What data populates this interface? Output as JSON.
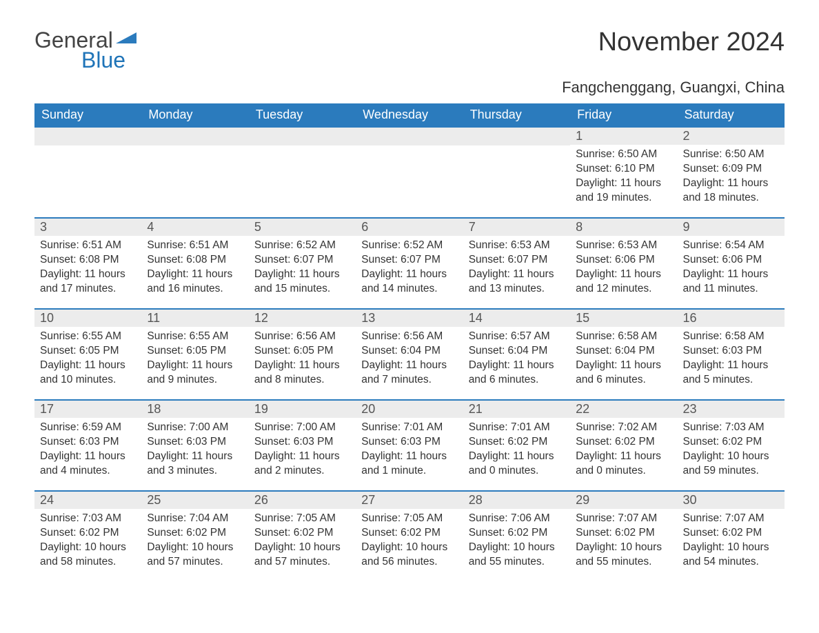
{
  "logo": {
    "general": "General",
    "blue": "Blue",
    "flag_color": "#2b7bbd"
  },
  "title": "November 2024",
  "location": "Fangchenggang, Guangxi, China",
  "colors": {
    "header_bg": "#2b7bbd",
    "header_text": "#ffffff",
    "daynum_bg": "#ececec",
    "text": "#333333",
    "row_border": "#2b7bbd"
  },
  "fonts": {
    "title_pt": 38,
    "location_pt": 22,
    "header_pt": 18,
    "daynum_pt": 18,
    "body_pt": 15.5
  },
  "day_labels": [
    "Sunday",
    "Monday",
    "Tuesday",
    "Wednesday",
    "Thursday",
    "Friday",
    "Saturday"
  ],
  "weeks": [
    [
      null,
      null,
      null,
      null,
      null,
      {
        "n": "1",
        "sunrise": "Sunrise: 6:50 AM",
        "sunset": "Sunset: 6:10 PM",
        "daylight": "Daylight: 11 hours and 19 minutes."
      },
      {
        "n": "2",
        "sunrise": "Sunrise: 6:50 AM",
        "sunset": "Sunset: 6:09 PM",
        "daylight": "Daylight: 11 hours and 18 minutes."
      }
    ],
    [
      {
        "n": "3",
        "sunrise": "Sunrise: 6:51 AM",
        "sunset": "Sunset: 6:08 PM",
        "daylight": "Daylight: 11 hours and 17 minutes."
      },
      {
        "n": "4",
        "sunrise": "Sunrise: 6:51 AM",
        "sunset": "Sunset: 6:08 PM",
        "daylight": "Daylight: 11 hours and 16 minutes."
      },
      {
        "n": "5",
        "sunrise": "Sunrise: 6:52 AM",
        "sunset": "Sunset: 6:07 PM",
        "daylight": "Daylight: 11 hours and 15 minutes."
      },
      {
        "n": "6",
        "sunrise": "Sunrise: 6:52 AM",
        "sunset": "Sunset: 6:07 PM",
        "daylight": "Daylight: 11 hours and 14 minutes."
      },
      {
        "n": "7",
        "sunrise": "Sunrise: 6:53 AM",
        "sunset": "Sunset: 6:07 PM",
        "daylight": "Daylight: 11 hours and 13 minutes."
      },
      {
        "n": "8",
        "sunrise": "Sunrise: 6:53 AM",
        "sunset": "Sunset: 6:06 PM",
        "daylight": "Daylight: 11 hours and 12 minutes."
      },
      {
        "n": "9",
        "sunrise": "Sunrise: 6:54 AM",
        "sunset": "Sunset: 6:06 PM",
        "daylight": "Daylight: 11 hours and 11 minutes."
      }
    ],
    [
      {
        "n": "10",
        "sunrise": "Sunrise: 6:55 AM",
        "sunset": "Sunset: 6:05 PM",
        "daylight": "Daylight: 11 hours and 10 minutes."
      },
      {
        "n": "11",
        "sunrise": "Sunrise: 6:55 AM",
        "sunset": "Sunset: 6:05 PM",
        "daylight": "Daylight: 11 hours and 9 minutes."
      },
      {
        "n": "12",
        "sunrise": "Sunrise: 6:56 AM",
        "sunset": "Sunset: 6:05 PM",
        "daylight": "Daylight: 11 hours and 8 minutes."
      },
      {
        "n": "13",
        "sunrise": "Sunrise: 6:56 AM",
        "sunset": "Sunset: 6:04 PM",
        "daylight": "Daylight: 11 hours and 7 minutes."
      },
      {
        "n": "14",
        "sunrise": "Sunrise: 6:57 AM",
        "sunset": "Sunset: 6:04 PM",
        "daylight": "Daylight: 11 hours and 6 minutes."
      },
      {
        "n": "15",
        "sunrise": "Sunrise: 6:58 AM",
        "sunset": "Sunset: 6:04 PM",
        "daylight": "Daylight: 11 hours and 6 minutes."
      },
      {
        "n": "16",
        "sunrise": "Sunrise: 6:58 AM",
        "sunset": "Sunset: 6:03 PM",
        "daylight": "Daylight: 11 hours and 5 minutes."
      }
    ],
    [
      {
        "n": "17",
        "sunrise": "Sunrise: 6:59 AM",
        "sunset": "Sunset: 6:03 PM",
        "daylight": "Daylight: 11 hours and 4 minutes."
      },
      {
        "n": "18",
        "sunrise": "Sunrise: 7:00 AM",
        "sunset": "Sunset: 6:03 PM",
        "daylight": "Daylight: 11 hours and 3 minutes."
      },
      {
        "n": "19",
        "sunrise": "Sunrise: 7:00 AM",
        "sunset": "Sunset: 6:03 PM",
        "daylight": "Daylight: 11 hours and 2 minutes."
      },
      {
        "n": "20",
        "sunrise": "Sunrise: 7:01 AM",
        "sunset": "Sunset: 6:03 PM",
        "daylight": "Daylight: 11 hours and 1 minute."
      },
      {
        "n": "21",
        "sunrise": "Sunrise: 7:01 AM",
        "sunset": "Sunset: 6:02 PM",
        "daylight": "Daylight: 11 hours and 0 minutes."
      },
      {
        "n": "22",
        "sunrise": "Sunrise: 7:02 AM",
        "sunset": "Sunset: 6:02 PM",
        "daylight": "Daylight: 11 hours and 0 minutes."
      },
      {
        "n": "23",
        "sunrise": "Sunrise: 7:03 AM",
        "sunset": "Sunset: 6:02 PM",
        "daylight": "Daylight: 10 hours and 59 minutes."
      }
    ],
    [
      {
        "n": "24",
        "sunrise": "Sunrise: 7:03 AM",
        "sunset": "Sunset: 6:02 PM",
        "daylight": "Daylight: 10 hours and 58 minutes."
      },
      {
        "n": "25",
        "sunrise": "Sunrise: 7:04 AM",
        "sunset": "Sunset: 6:02 PM",
        "daylight": "Daylight: 10 hours and 57 minutes."
      },
      {
        "n": "26",
        "sunrise": "Sunrise: 7:05 AM",
        "sunset": "Sunset: 6:02 PM",
        "daylight": "Daylight: 10 hours and 57 minutes."
      },
      {
        "n": "27",
        "sunrise": "Sunrise: 7:05 AM",
        "sunset": "Sunset: 6:02 PM",
        "daylight": "Daylight: 10 hours and 56 minutes."
      },
      {
        "n": "28",
        "sunrise": "Sunrise: 7:06 AM",
        "sunset": "Sunset: 6:02 PM",
        "daylight": "Daylight: 10 hours and 55 minutes."
      },
      {
        "n": "29",
        "sunrise": "Sunrise: 7:07 AM",
        "sunset": "Sunset: 6:02 PM",
        "daylight": "Daylight: 10 hours and 55 minutes."
      },
      {
        "n": "30",
        "sunrise": "Sunrise: 7:07 AM",
        "sunset": "Sunset: 6:02 PM",
        "daylight": "Daylight: 10 hours and 54 minutes."
      }
    ]
  ]
}
